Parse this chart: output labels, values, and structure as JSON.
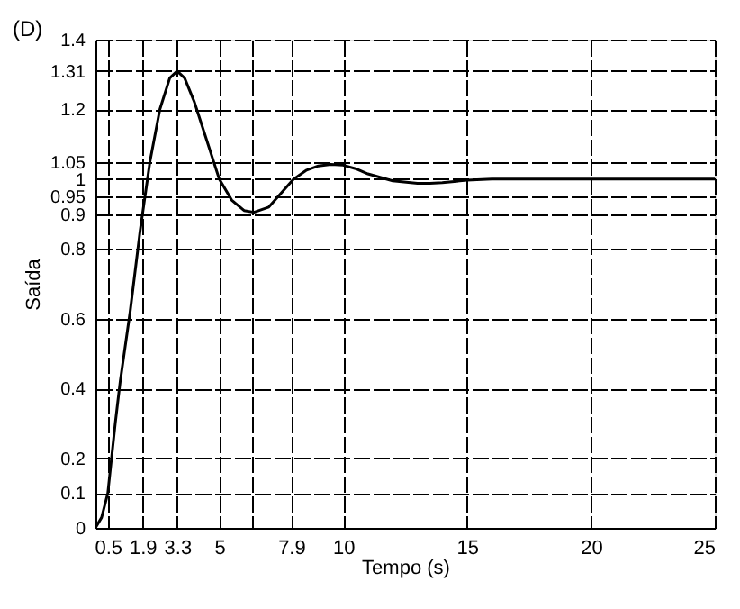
{
  "chart_data": {
    "type": "line",
    "xlabel": "Tempo (s)",
    "ylabel": "Saída",
    "annotations": [
      "(D)"
    ],
    "x": [
      0,
      0.25,
      0.5,
      0.8,
      1.0,
      1.4,
      1.8,
      2.2,
      2.6,
      3.0,
      3.3,
      3.6,
      4.0,
      4.5,
      5.0,
      5.5,
      6.0,
      6.4,
      7.0,
      7.5,
      8.0,
      8.5,
      9.0,
      9.5,
      10.0,
      10.5,
      11.0,
      12.0,
      13.0,
      13.5,
      14.0,
      15.0,
      16.0,
      20.0,
      25.0
    ],
    "series": [
      {
        "color": "#000000",
        "values": [
          0,
          0.03,
          0.1,
          0.3,
          0.42,
          0.62,
          0.85,
          1.05,
          1.2,
          1.29,
          1.31,
          1.29,
          1.22,
          1.11,
          1.0,
          0.94,
          0.91,
          0.905,
          0.92,
          0.96,
          1.0,
          1.025,
          1.038,
          1.042,
          1.04,
          1.03,
          1.015,
          0.995,
          0.988,
          0.988,
          0.99,
          0.997,
          1.0,
          1.0,
          1.0
        ]
      }
    ],
    "xlim": [
      0,
      25
    ],
    "ylim": [
      0,
      1.4
    ],
    "xticks": [
      0.5,
      1.9,
      3.3,
      5,
      {
        "value": 6.3,
        "label": null
      },
      7.9,
      10,
      15,
      20,
      25
    ],
    "yticks": [
      0,
      0.1,
      0.2,
      0.4,
      0.6,
      0.8,
      0.9,
      0.95,
      1,
      1.05,
      1.2,
      1.31,
      1.4
    ],
    "grid": true,
    "marker": "none",
    "line_style": "solid"
  }
}
